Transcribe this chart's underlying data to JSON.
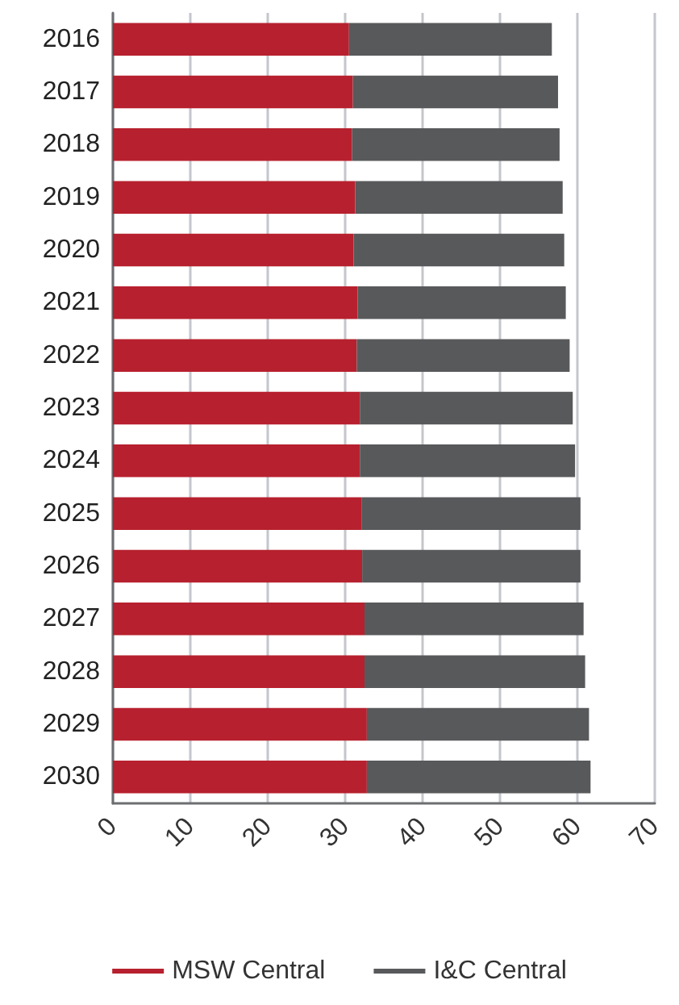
{
  "chart_data": {
    "type": "bar",
    "orientation": "horizontal",
    "stacked": true,
    "categories": [
      "2016",
      "2017",
      "2018",
      "2019",
      "2020",
      "2021",
      "2022",
      "2023",
      "2024",
      "2025",
      "2026",
      "2027",
      "2028",
      "2029",
      "2030"
    ],
    "series": [
      {
        "name": "MSW Central",
        "color": "#b7202e",
        "values": [
          30.5,
          31.0,
          30.9,
          31.3,
          31.1,
          31.6,
          31.5,
          31.9,
          31.9,
          32.1,
          32.2,
          32.5,
          32.5,
          32.8,
          32.8
        ]
      },
      {
        "name": "I&C Central",
        "color": "#58595b",
        "values": [
          26.2,
          26.5,
          26.8,
          26.8,
          27.2,
          26.9,
          27.5,
          27.5,
          27.8,
          28.3,
          28.2,
          28.3,
          28.5,
          28.7,
          28.9
        ]
      }
    ],
    "xlim": [
      0,
      70
    ],
    "xticks": [
      0,
      10,
      20,
      30,
      40,
      50,
      60,
      70
    ],
    "grid": "x",
    "legend": "bottom"
  }
}
